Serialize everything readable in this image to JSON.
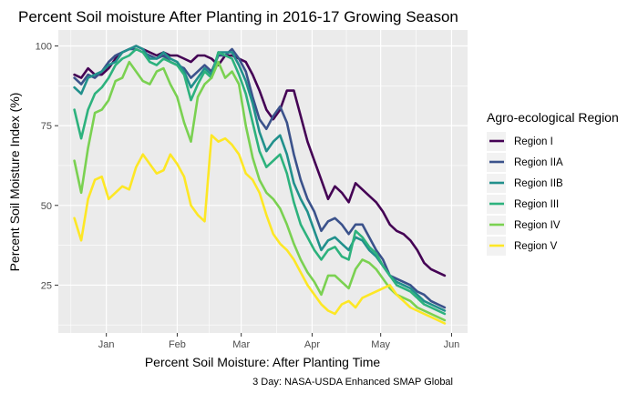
{
  "chart_data": {
    "type": "line",
    "title": "Percent Soil moisture After Planting in 2016-17 Growing Season",
    "xlabel": "Percent Soil Moisture: After Planting Time",
    "ylabel": "Percent Soil Moisture Index (%)",
    "caption": "3 Day: NASA-USDA Enhanced SMAP Global",
    "x_ticks": [
      "Jan",
      "Feb",
      "Mar",
      "Apr",
      "May",
      "Jun"
    ],
    "y_ticks": [
      25,
      50,
      75,
      100
    ],
    "ylim": [
      10,
      105
    ],
    "grid": true,
    "legend": {
      "title": "Agro-ecological Region",
      "position": "right"
    },
    "x": [
      "2016-12-18",
      "2016-12-21",
      "2016-12-24",
      "2016-12-27",
      "2016-12-30",
      "2017-01-02",
      "2017-01-05",
      "2017-01-08",
      "2017-01-11",
      "2017-01-14",
      "2017-01-17",
      "2017-01-20",
      "2017-01-23",
      "2017-01-26",
      "2017-01-29",
      "2017-02-01",
      "2017-02-04",
      "2017-02-07",
      "2017-02-10",
      "2017-02-13",
      "2017-02-16",
      "2017-02-19",
      "2017-02-22",
      "2017-02-25",
      "2017-02-28",
      "2017-03-03",
      "2017-03-06",
      "2017-03-09",
      "2017-03-12",
      "2017-03-15",
      "2017-03-18",
      "2017-03-21",
      "2017-03-24",
      "2017-03-27",
      "2017-03-30",
      "2017-04-02",
      "2017-04-05",
      "2017-04-08",
      "2017-04-11",
      "2017-04-14",
      "2017-04-17",
      "2017-04-20",
      "2017-04-23",
      "2017-04-26",
      "2017-04-29",
      "2017-05-02",
      "2017-05-05",
      "2017-05-08",
      "2017-05-11",
      "2017-05-14",
      "2017-05-17",
      "2017-05-20",
      "2017-05-23",
      "2017-05-26",
      "2017-05-29"
    ],
    "series": [
      {
        "name": "Region I",
        "color": "#440154",
        "values": [
          91,
          90,
          93,
          91,
          91,
          93,
          96,
          98,
          99,
          100,
          99,
          98,
          97,
          98,
          97,
          97,
          96,
          95,
          97,
          97,
          96,
          94,
          97,
          97,
          96,
          95,
          91,
          86,
          80,
          77,
          80,
          86,
          86,
          78,
          70,
          64,
          58,
          52,
          56,
          54,
          51,
          57,
          55,
          53,
          51,
          48,
          44,
          42,
          41,
          39,
          36,
          32,
          30,
          29,
          28
        ]
      },
      {
        "name": "Region IIA",
        "color": "#3b528b",
        "values": [
          90,
          88,
          91,
          90,
          92,
          95,
          97,
          98,
          99,
          99,
          98,
          97,
          96,
          97,
          95,
          94,
          93,
          90,
          92,
          94,
          92,
          97,
          97,
          99,
          96,
          92,
          84,
          77,
          74,
          78,
          81,
          76,
          66,
          58,
          52,
          48,
          42,
          45,
          46,
          44,
          41,
          44,
          44,
          40,
          36,
          33,
          28,
          27,
          26,
          25,
          23,
          22,
          20,
          19,
          18
        ]
      },
      {
        "name": "Region IIB",
        "color": "#21908c",
        "values": [
          87,
          85,
          90,
          91,
          92,
          94,
          95,
          98,
          99,
          100,
          99,
          96,
          96,
          98,
          96,
          95,
          92,
          87,
          90,
          93,
          91,
          98,
          98,
          98,
          94,
          89,
          82,
          73,
          67,
          70,
          72,
          66,
          57,
          52,
          48,
          42,
          36,
          39,
          40,
          38,
          36,
          40,
          39,
          36,
          34,
          31,
          28,
          26,
          25,
          24,
          22,
          20,
          19,
          18,
          17
        ]
      },
      {
        "name": "Region III",
        "color": "#2db27d",
        "values": [
          80,
          71,
          80,
          85,
          87,
          90,
          94,
          96,
          97,
          99,
          98,
          95,
          94,
          96,
          95,
          94,
          91,
          83,
          88,
          92,
          90,
          98,
          97,
          96,
          91,
          85,
          76,
          67,
          62,
          64,
          66,
          60,
          51,
          44,
          40,
          36,
          33,
          36,
          37,
          34,
          33,
          42,
          40,
          37,
          35,
          31,
          28,
          25,
          24,
          23,
          21,
          19,
          18,
          17,
          16
        ]
      },
      {
        "name": "Region IV",
        "color": "#7ad151",
        "values": [
          64,
          54,
          68,
          79,
          80,
          83,
          89,
          90,
          95,
          92,
          89,
          88,
          92,
          93,
          88,
          84,
          76,
          70,
          84,
          88,
          90,
          95,
          90,
          92,
          88,
          75,
          65,
          58,
          54,
          52,
          49,
          44,
          38,
          33,
          29,
          26,
          22,
          28,
          28,
          26,
          24,
          30,
          33,
          32,
          30,
          27,
          24,
          22,
          21,
          20,
          18,
          17,
          16,
          15,
          14
        ]
      },
      {
        "name": "Region V",
        "color": "#fde725",
        "values": [
          46,
          39,
          52,
          58,
          59,
          52,
          54,
          56,
          55,
          62,
          66,
          63,
          60,
          61,
          66,
          63,
          59,
          50,
          47,
          45,
          72,
          70,
          71,
          69,
          66,
          60,
          58,
          54,
          47,
          41,
          38,
          36,
          33,
          29,
          25,
          22,
          19,
          17,
          16,
          19,
          20,
          18,
          21,
          22,
          23,
          24,
          25,
          22,
          20,
          18,
          17,
          16,
          15,
          14,
          13
        ]
      }
    ]
  }
}
